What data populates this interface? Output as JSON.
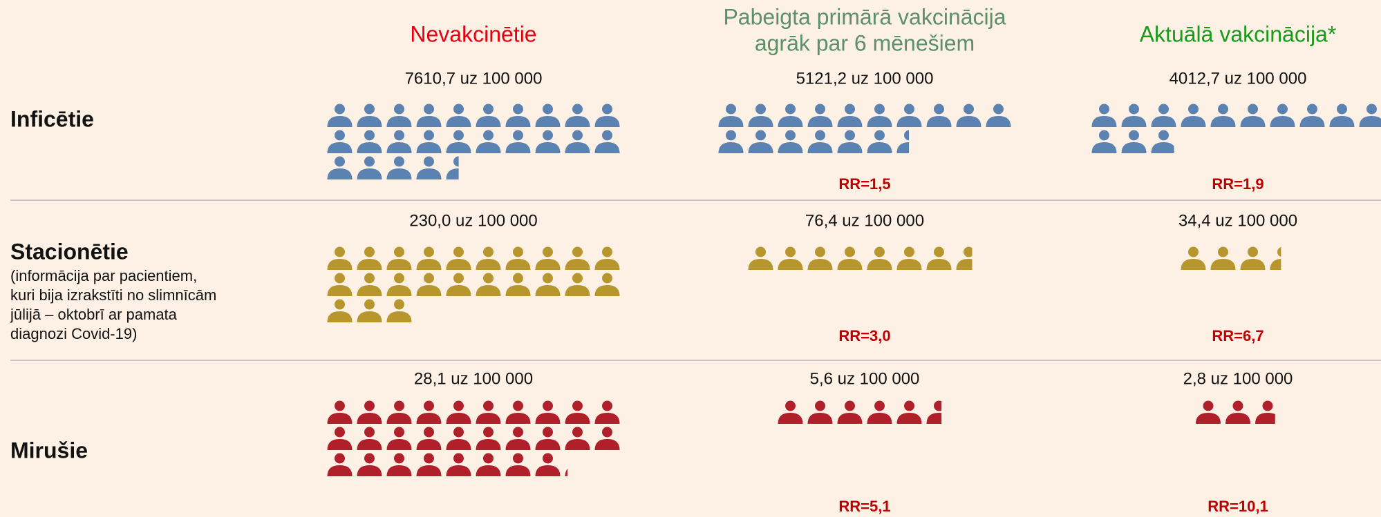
{
  "columns": [
    {
      "title_lines": [
        "Nevakcinētie"
      ],
      "color": "#e3000f"
    },
    {
      "title_lines": [
        "Pabeigta primārā vakcinācija",
        "agrāk par 6 mēnešiem"
      ],
      "color": "#5c8f6a"
    },
    {
      "title_lines": [
        "Aktuālā vakcinācija*"
      ],
      "color": "#1a9a1a"
    }
  ],
  "rows": [
    {
      "title": "Inficētie",
      "color": "#5b82b0",
      "values": [
        7610.7,
        5121.2,
        4012.7
      ],
      "value_labels": [
        "7610,7 uz 100 000",
        "5121,2 uz 100 000",
        "4012,7 uz 100 000"
      ],
      "rr_labels": [
        "RR=1,5",
        "RR=1,9"
      ]
    },
    {
      "title": "Stacionētie",
      "color": "#b8962e",
      "note_lines": [
        "(informācija par pacientiem,",
        "kuri bija izrakstīti no slimnīcām",
        "jūlijā – oktobrī ar pamata",
        "diagnozi Covid-19)"
      ],
      "values": [
        230.0,
        76.4,
        34.4
      ],
      "value_labels": [
        "230,0 uz 100 000",
        "76,4 uz 100 000",
        "34,4 uz 100 000"
      ],
      "rr_labels": [
        "RR=3,0",
        "RR=6,7"
      ]
    },
    {
      "title": "Mirušie",
      "color": "#b0202a",
      "values": [
        28.1,
        5.6,
        2.8
      ],
      "value_labels": [
        "28,1 uz 100 000",
        "5,6 uz 100 000",
        "2,8 uz 100 000"
      ],
      "rr_labels": [
        "RR=5,1",
        "RR=10,1"
      ]
    }
  ]
}
